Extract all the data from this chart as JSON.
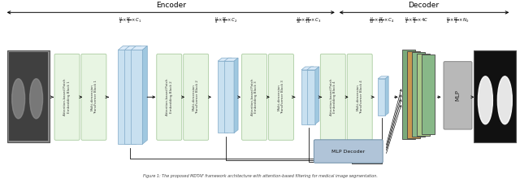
{
  "figsize": [
    6.4,
    2.25
  ],
  "dpi": 100,
  "bg_color": "#ffffff",
  "encoder_label": "Encoder",
  "decoder_label": "Decoder",
  "green_box_color": "#e8f5e3",
  "green_box_edge": "#aacca0",
  "blue_face_color": "#c8e0f0",
  "blue_top_color": "#daeaf8",
  "blue_right_color": "#a0c8e0",
  "blue_edge_color": "#80aac8",
  "mlp_decoder_color": "#b0c4d8",
  "mlp_decoder_edge": "#7090a8",
  "mlp_box_color": "#b8b8b8",
  "mlp_box_edge": "#888888",
  "stack_colors": [
    "#7aaa7a",
    "#c89850",
    "#88b888",
    "#a8c888",
    "#88b888"
  ],
  "caption": "Figure 1: The proposed MDTAF framework architecture with attention-based filtering for medical image segmentation."
}
